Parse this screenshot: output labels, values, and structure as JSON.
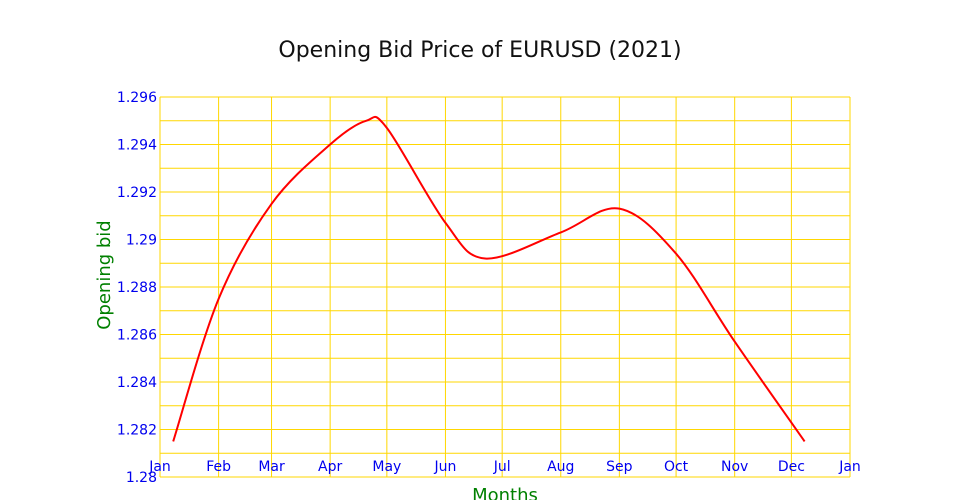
{
  "chart_data": {
    "type": "line",
    "title": "Opening Bid Price of EURUSD (2021)",
    "xlabel": "Months",
    "ylabel": "Opening bid",
    "x_tick_labels": [
      "Jan",
      "Feb",
      "Mar",
      "Apr",
      "May",
      "Jun",
      "Jul",
      "Aug",
      "Sep",
      "Oct",
      "Nov",
      "Dec",
      "Jan"
    ],
    "y_tick_labels": [
      "1.28",
      "1.282",
      "1.284",
      "1.286",
      "1.288",
      "1.29",
      "1.292",
      "1.294",
      "1.296"
    ],
    "ylim": [
      1.28,
      1.296
    ],
    "xlim": [
      "2021-01-01",
      "2022-01-01"
    ],
    "grid": true,
    "legend": "none",
    "series": [
      {
        "points": [
          {
            "x": "2021-01-08",
            "y": 1.2815
          },
          {
            "x": "2021-02-01",
            "y": 1.2875
          },
          {
            "x": "2021-03-01",
            "y": 1.2915
          },
          {
            "x": "2021-04-01",
            "y": 1.294
          },
          {
            "x": "2021-04-20",
            "y": 1.295
          },
          {
            "x": "2021-05-01",
            "y": 1.2947
          },
          {
            "x": "2021-06-01",
            "y": 1.2907
          },
          {
            "x": "2021-06-22",
            "y": 1.2892
          },
          {
            "x": "2021-08-01",
            "y": 1.2903
          },
          {
            "x": "2021-09-01",
            "y": 1.2913
          },
          {
            "x": "2021-10-01",
            "y": 1.2894
          },
          {
            "x": "2021-11-01",
            "y": 1.2857
          },
          {
            "x": "2021-12-08",
            "y": 1.2815
          }
        ]
      }
    ]
  },
  "colors": {
    "title": "#111111",
    "tick_labels": "#0000ee",
    "axis_titles": "#008000",
    "grid": "#ffd700",
    "line": "#ff0000"
  }
}
